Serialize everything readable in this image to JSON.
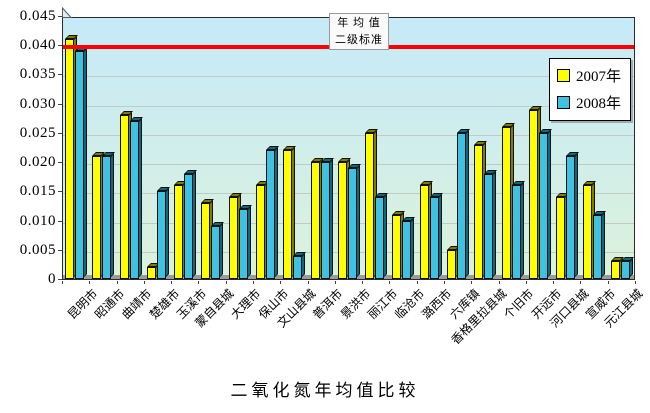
{
  "annotation": {
    "line1": "年 均 值",
    "line2": "二级标准"
  },
  "colors": {
    "plot_bg_top": "#c6eaf8",
    "plot_bg_bottom": "#dcf2da",
    "gridline": "#c2cac4",
    "floor": "#9b9b9b",
    "reference_red": "#fe0000",
    "series_2007": "#ffff00",
    "series_2007_shade": "#7f7e00",
    "series_2008": "#3fc2e2",
    "series_2008_shade": "#0b6a7d"
  },
  "chart_data": {
    "type": "bar",
    "title": "二氧化氮年均值比较",
    "categories": [
      "昆明市",
      "昭通市",
      "曲靖市",
      "楚雄市",
      "玉溪市",
      "蒙自县城",
      "大理市",
      "保山市",
      "文山县城",
      "普洱市",
      "景洪市",
      "丽江市",
      "临沧市",
      "潞西市",
      "六库镇",
      "香格里拉县城",
      "个旧市",
      "开远市",
      "河口县城",
      "宣威市",
      "元江县城"
    ],
    "series": [
      {
        "name": "2007年",
        "color": "#ffff00",
        "shade_color": "#7f7e00",
        "values": [
          0.041,
          0.021,
          0.028,
          0.002,
          0.016,
          0.013,
          0.014,
          0.016,
          0.022,
          0.02,
          0.02,
          0.025,
          0.011,
          0.016,
          0.005,
          0.023,
          0.026,
          0.029,
          0.014,
          0.016,
          0.003
        ]
      },
      {
        "name": "2008年",
        "color": "#3fc2e2",
        "shade_color": "#0b6a7d",
        "values": [
          0.039,
          0.021,
          0.027,
          0.015,
          0.018,
          0.009,
          0.012,
          0.022,
          0.004,
          0.02,
          0.019,
          0.014,
          0.01,
          0.014,
          0.025,
          0.018,
          0.016,
          0.025,
          0.021,
          0.011,
          0.003
        ]
      }
    ],
    "ylim": [
      0,
      0.045
    ],
    "ytick_interval": 0.005,
    "ytick_labels": [
      "0",
      "0.005",
      "0.010",
      "0.015",
      "0.020",
      "0.025",
      "0.030",
      "0.035",
      "0.040",
      "0.045"
    ],
    "xlabel": "",
    "ylabel": "",
    "grid": true,
    "legend_position": "top-right",
    "reference_line": {
      "value": 0.04,
      "label": "年均值二级标准",
      "color": "#fe0000"
    }
  }
}
